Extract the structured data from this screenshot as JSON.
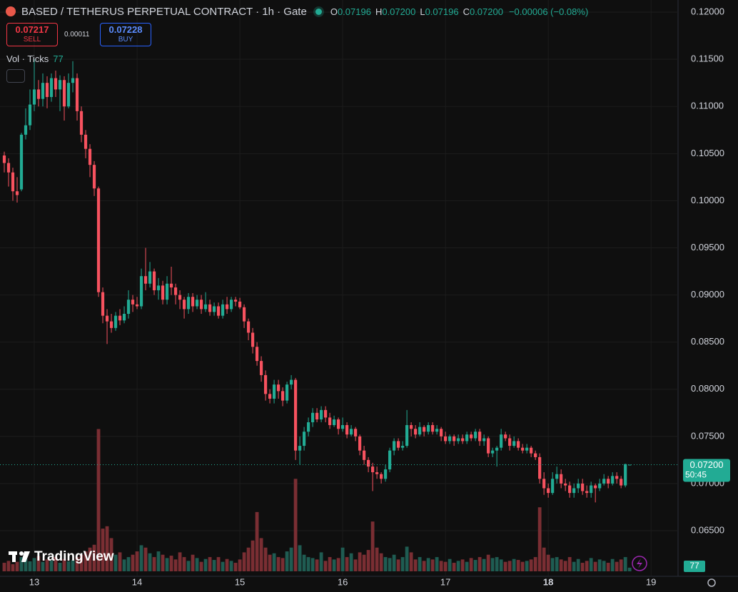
{
  "header": {
    "title": "BASED / TETHERUS PERPETUAL CONTRACT · 1h · Gate",
    "ohlc": [
      {
        "key": "O",
        "value": "0.07196"
      },
      {
        "key": "H",
        "value": "0.07200"
      },
      {
        "key": "L",
        "value": "0.07196"
      },
      {
        "key": "C",
        "value": "0.07200"
      }
    ],
    "change": "−0.00006 (−0.08%)"
  },
  "trade": {
    "sell_price": "0.07217",
    "sell": "SELL",
    "spread": "0.00011",
    "buy_price": "0.07228",
    "buy": "BUY"
  },
  "indicator": {
    "name": "Vol · Ticks"
  },
  "price_label": {
    "price": "0.07200",
    "countdown": "50:45"
  },
  "brand": "TradingView",
  "chart_data": {
    "type": "candlestick",
    "up_color": "#22ab94",
    "down_color": "#f7525f",
    "volume_up_color": "#1f5c52",
    "volume_down_color": "#7a2e33",
    "grid": true,
    "xlim": [
      -1,
      157.3
    ],
    "xticks": [
      {
        "value": 7,
        "label": "13"
      },
      {
        "value": 31,
        "label": "14"
      },
      {
        "value": 55,
        "label": "15"
      },
      {
        "value": 79,
        "label": "16"
      },
      {
        "value": 103,
        "label": "17"
      },
      {
        "value": 127,
        "label": "18"
      },
      {
        "value": 151,
        "label": "19"
      }
    ],
    "ylim": [
      0.06016,
      0.12129
    ],
    "yticks": [
      {
        "value": 0.065,
        "label": "0.06500"
      },
      {
        "value": 0.07,
        "label": "0.07000"
      },
      {
        "value": 0.075,
        "label": "0.07500"
      },
      {
        "value": 0.08,
        "label": "0.08000"
      },
      {
        "value": 0.085,
        "label": "0.08500"
      },
      {
        "value": 0.09,
        "label": "0.09000"
      },
      {
        "value": 0.095,
        "label": "0.09500"
      },
      {
        "value": 0.1,
        "label": "0.10000"
      },
      {
        "value": 0.105,
        "label": "0.10500"
      },
      {
        "value": 0.11,
        "label": "0.11000"
      },
      {
        "value": 0.115,
        "label": "0.11500"
      },
      {
        "value": 0.12,
        "label": "0.12000"
      }
    ],
    "volume_ylim": [
      0,
      4000
    ],
    "open": [
      0.1048,
      0.104,
      0.103,
      0.101,
      0.1012,
      0.107,
      0.108,
      0.1102,
      0.1118,
      0.1108,
      0.1125,
      0.111,
      0.113,
      0.1118,
      0.1128,
      0.11,
      0.1125,
      0.113,
      0.1095,
      0.107,
      0.1055,
      0.1038,
      0.1013,
      0.0903,
      0.0878,
      0.0872,
      0.0865,
      0.0878,
      0.0873,
      0.088,
      0.0895,
      0.089,
      0.0888,
      0.092,
      0.0912,
      0.0925,
      0.0905,
      0.091,
      0.0895,
      0.0912,
      0.0908,
      0.09,
      0.0895,
      0.0885,
      0.0898,
      0.0888,
      0.0895,
      0.0885,
      0.089,
      0.0882,
      0.0888,
      0.0878,
      0.089,
      0.0885,
      0.0895,
      0.0893,
      0.0887,
      0.0872,
      0.086,
      0.0845,
      0.083,
      0.0815,
      0.0795,
      0.079,
      0.0805,
      0.0798,
      0.0788,
      0.0805,
      0.081,
      0.0735,
      0.074,
      0.0755,
      0.0765,
      0.0775,
      0.0768,
      0.0778,
      0.077,
      0.0762,
      0.0768,
      0.0758,
      0.0762,
      0.0752,
      0.0758,
      0.075,
      0.0735,
      0.0725,
      0.0718,
      0.0712,
      0.071,
      0.0705,
      0.0715,
      0.0735,
      0.0745,
      0.0738,
      0.074,
      0.0762,
      0.0758,
      0.0752,
      0.076,
      0.0755,
      0.0762,
      0.0755,
      0.0758,
      0.075,
      0.0745,
      0.075,
      0.0745,
      0.0748,
      0.0745,
      0.0752,
      0.0748,
      0.0755,
      0.0745,
      0.0748,
      0.0732,
      0.0735,
      0.0738,
      0.0752,
      0.0748,
      0.074,
      0.0745,
      0.0738,
      0.0735,
      0.0738,
      0.0732,
      0.0728,
      0.0705,
      0.0695,
      0.069,
      0.0705,
      0.071,
      0.07,
      0.0698,
      0.069,
      0.0695,
      0.07,
      0.0692,
      0.069,
      0.0698,
      0.0695,
      0.07,
      0.0705,
      0.07,
      0.0708,
      0.0705,
      0.0698,
      0.07196
    ],
    "high": [
      0.1052,
      0.1045,
      0.1035,
      0.1025,
      0.1072,
      0.1098,
      0.1118,
      0.115,
      0.1128,
      0.1135,
      0.1132,
      0.1135,
      0.1138,
      0.1133,
      0.1132,
      0.1135,
      0.1148,
      0.1135,
      0.11,
      0.1075,
      0.106,
      0.1042,
      0.1015,
      0.0908,
      0.0885,
      0.088,
      0.0882,
      0.0885,
      0.0888,
      0.0905,
      0.09,
      0.0898,
      0.0928,
      0.095,
      0.0935,
      0.0928,
      0.0918,
      0.0915,
      0.092,
      0.093,
      0.0912,
      0.0905,
      0.0898,
      0.0902,
      0.0902,
      0.09,
      0.09,
      0.0903,
      0.0895,
      0.0892,
      0.0892,
      0.0895,
      0.0898,
      0.0898,
      0.0898,
      0.0897,
      0.089,
      0.0875,
      0.0865,
      0.085,
      0.0835,
      0.082,
      0.08,
      0.081,
      0.081,
      0.0802,
      0.0808,
      0.0815,
      0.0812,
      0.075,
      0.076,
      0.077,
      0.078,
      0.078,
      0.0782,
      0.0782,
      0.0775,
      0.0772,
      0.077,
      0.077,
      0.0765,
      0.0762,
      0.076,
      0.0752,
      0.074,
      0.0728,
      0.0722,
      0.0718,
      0.0712,
      0.072,
      0.0738,
      0.0748,
      0.0748,
      0.0745,
      0.0778,
      0.0765,
      0.0762,
      0.0765,
      0.0762,
      0.0765,
      0.0765,
      0.0762,
      0.076,
      0.0755,
      0.0752,
      0.0752,
      0.0752,
      0.0752,
      0.0755,
      0.0755,
      0.0758,
      0.0758,
      0.0752,
      0.075,
      0.0738,
      0.074,
      0.0758,
      0.0755,
      0.0752,
      0.075,
      0.0748,
      0.0742,
      0.0742,
      0.074,
      0.0735,
      0.0732,
      0.0712,
      0.07,
      0.0712,
      0.0718,
      0.0715,
      0.0705,
      0.0702,
      0.07,
      0.0705,
      0.0705,
      0.0698,
      0.0702,
      0.07,
      0.0705,
      0.071,
      0.0708,
      0.0712,
      0.0712,
      0.0708,
      0.0721,
      0.072
    ],
    "low": [
      0.103,
      0.1015,
      0.1,
      0.0998,
      0.101,
      0.1065,
      0.1075,
      0.1095,
      0.11,
      0.11,
      0.1098,
      0.1105,
      0.111,
      0.1095,
      0.1085,
      0.1098,
      0.1115,
      0.1085,
      0.1062,
      0.1045,
      0.1025,
      0.1005,
      0.0898,
      0.087,
      0.0848,
      0.086,
      0.0862,
      0.0868,
      0.087,
      0.0875,
      0.0882,
      0.0885,
      0.0885,
      0.0905,
      0.0908,
      0.09,
      0.0895,
      0.089,
      0.089,
      0.09,
      0.089,
      0.0885,
      0.0875,
      0.088,
      0.0882,
      0.0885,
      0.088,
      0.0882,
      0.0878,
      0.0878,
      0.0875,
      0.0875,
      0.088,
      0.0882,
      0.0888,
      0.0885,
      0.0865,
      0.0852,
      0.0838,
      0.0825,
      0.0808,
      0.0788,
      0.0785,
      0.0785,
      0.079,
      0.0782,
      0.0785,
      0.08,
      0.0725,
      0.072,
      0.0735,
      0.075,
      0.076,
      0.0765,
      0.0765,
      0.0765,
      0.0758,
      0.076,
      0.0752,
      0.0755,
      0.0748,
      0.075,
      0.0745,
      0.073,
      0.072,
      0.0712,
      0.0692,
      0.0705,
      0.07,
      0.0702,
      0.0712,
      0.073,
      0.0735,
      0.0735,
      0.0738,
      0.075,
      0.0748,
      0.075,
      0.075,
      0.0752,
      0.0752,
      0.0752,
      0.0745,
      0.0742,
      0.0742,
      0.074,
      0.0742,
      0.0742,
      0.0742,
      0.0745,
      0.0745,
      0.074,
      0.074,
      0.0728,
      0.0728,
      0.0718,
      0.0735,
      0.0745,
      0.0735,
      0.0738,
      0.0735,
      0.0732,
      0.0732,
      0.0728,
      0.0725,
      0.07,
      0.0688,
      0.0685,
      0.0688,
      0.07,
      0.0695,
      0.0692,
      0.0685,
      0.0685,
      0.069,
      0.0688,
      0.0685,
      0.0685,
      0.068,
      0.0692,
      0.0698,
      0.0695,
      0.0698,
      0.07,
      0.0695,
      0.0696,
      0.07196
    ],
    "close": [
      0.104,
      0.103,
      0.101,
      0.1006,
      0.107,
      0.108,
      0.1102,
      0.1118,
      0.1108,
      0.1125,
      0.111,
      0.113,
      0.1118,
      0.1128,
      0.11,
      0.1125,
      0.113,
      0.1095,
      0.107,
      0.1055,
      0.1038,
      0.1013,
      0.0903,
      0.0878,
      0.0872,
      0.0865,
      0.0878,
      0.0873,
      0.088,
      0.0895,
      0.089,
      0.0888,
      0.092,
      0.0912,
      0.0925,
      0.0905,
      0.091,
      0.0895,
      0.0912,
      0.0908,
      0.09,
      0.0895,
      0.0885,
      0.0898,
      0.0888,
      0.0895,
      0.0885,
      0.089,
      0.0882,
      0.0888,
      0.0878,
      0.089,
      0.0885,
      0.0895,
      0.0893,
      0.0887,
      0.0872,
      0.086,
      0.0845,
      0.083,
      0.0815,
      0.0795,
      0.079,
      0.0805,
      0.0798,
      0.0788,
      0.0805,
      0.081,
      0.0735,
      0.074,
      0.0755,
      0.0765,
      0.0775,
      0.0768,
      0.0778,
      0.077,
      0.0762,
      0.0768,
      0.0758,
      0.0762,
      0.0752,
      0.0758,
      0.075,
      0.0735,
      0.0725,
      0.0718,
      0.0712,
      0.071,
      0.0705,
      0.0715,
      0.0735,
      0.0745,
      0.0738,
      0.074,
      0.0762,
      0.0758,
      0.0752,
      0.076,
      0.0755,
      0.0762,
      0.0755,
      0.0758,
      0.075,
      0.0745,
      0.075,
      0.0745,
      0.0748,
      0.0745,
      0.0752,
      0.0748,
      0.0755,
      0.0745,
      0.0748,
      0.0732,
      0.0735,
      0.0738,
      0.0752,
      0.0748,
      0.074,
      0.0745,
      0.0738,
      0.0735,
      0.0738,
      0.0732,
      0.0728,
      0.0705,
      0.0695,
      0.069,
      0.0705,
      0.071,
      0.07,
      0.0698,
      0.069,
      0.0695,
      0.07,
      0.0692,
      0.069,
      0.0698,
      0.0695,
      0.07,
      0.0705,
      0.07,
      0.0708,
      0.0705,
      0.0698,
      0.07206,
      0.072
    ],
    "volume": [
      180,
      220,
      150,
      200,
      300,
      260,
      210,
      280,
      320,
      200,
      250,
      230,
      300,
      180,
      260,
      210,
      240,
      300,
      350,
      420,
      500,
      560,
      3000,
      900,
      950,
      700,
      350,
      400,
      250,
      300,
      350,
      420,
      550,
      500,
      380,
      300,
      420,
      350,
      280,
      330,
      250,
      400,
      300,
      220,
      350,
      280,
      200,
      260,
      300,
      240,
      300,
      200,
      260,
      220,
      180,
      250,
      400,
      500,
      650,
      1250,
      700,
      500,
      350,
      380,
      300,
      280,
      420,
      500,
      1950,
      550,
      350,
      300,
      280,
      250,
      400,
      220,
      300,
      250,
      280,
      500,
      300,
      380,
      250,
      400,
      350,
      450,
      1050,
      500,
      380,
      300,
      280,
      350,
      250,
      300,
      520,
      400,
      250,
      300,
      220,
      280,
      250,
      300,
      220,
      200,
      260,
      180,
      220,
      250,
      200,
      280,
      240,
      300,
      260,
      350,
      280,
      300,
      250,
      200,
      220,
      260,
      240,
      200,
      220,
      250,
      300,
      1350,
      500,
      350,
      280,
      300,
      250,
      220,
      300,
      200,
      260,
      180,
      220,
      280,
      200,
      250,
      220,
      180,
      260,
      200,
      250,
      300,
      77
    ]
  }
}
